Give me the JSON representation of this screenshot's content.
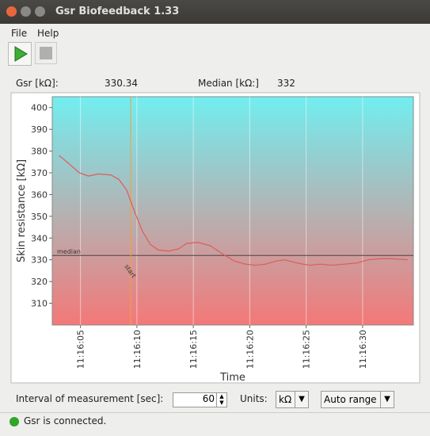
{
  "window": {
    "title": "Gsr Biofeedback 1.33"
  },
  "menu": [
    "File",
    "Help"
  ],
  "readouts": {
    "gsr": {
      "label": "Gsr [kΩ]:",
      "value": 330.34
    },
    "median": {
      "label": "Median [kΩ:]",
      "value": 332
    }
  },
  "chart_data": {
    "type": "line",
    "x_label": "Time",
    "y_label": "Skin resistance [kΩ]",
    "x": [
      3.1,
      3.8,
      4.9,
      5.7,
      6.6,
      7.7,
      8.4,
      9.1,
      9.8,
      10.5,
      11.2,
      11.9,
      12.8,
      13.7,
      14.4,
      15.4,
      16.5,
      17.5,
      18.6,
      19.6,
      20.5,
      21.4,
      22.4,
      23.1,
      24.2,
      25.3,
      26.3,
      27.2,
      28.4,
      29.5,
      30.5,
      31.6,
      32.6,
      34.0
    ],
    "values": [
      378,
      375,
      370,
      368.5,
      369.5,
      369,
      367,
      362,
      352,
      343,
      337,
      334.5,
      334,
      335,
      337.5,
      338,
      336.5,
      333,
      329.5,
      328,
      327.5,
      328,
      329.5,
      330,
      328.5,
      327.5,
      328,
      327.5,
      328,
      328.5,
      330,
      330.5,
      330.5,
      330
    ],
    "color": "#e05a5a",
    "xlim": [
      2.5,
      34.5
    ],
    "ylim": [
      300,
      405
    ],
    "xticks": [
      {
        "value": 5,
        "label": "11:16:05"
      },
      {
        "value": 10,
        "label": "11:16:10"
      },
      {
        "value": 15,
        "label": "11:16:15"
      },
      {
        "value": 20,
        "label": "11:16:20"
      },
      {
        "value": 25,
        "label": "11:16:25"
      },
      {
        "value": 30,
        "label": "11:16:30"
      }
    ],
    "yticks": [
      310,
      320,
      330,
      340,
      350,
      360,
      370,
      380,
      390,
      400
    ],
    "grid": true,
    "background": [
      "#72eef0",
      "#f47878"
    ],
    "median": {
      "value": 332,
      "label": "median",
      "color": "#444444"
    },
    "marker": {
      "x": 9.45,
      "label": "start",
      "color": "#f0a040"
    }
  },
  "controls": {
    "interval": {
      "label": "Interval of measurement [sec]:",
      "value": 60
    },
    "units": {
      "label": "Units:",
      "value": "kΩ"
    },
    "range": "Auto range"
  },
  "status": "Gsr is connected."
}
